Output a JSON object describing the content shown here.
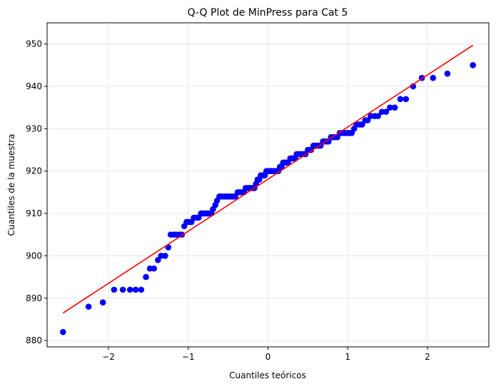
{
  "chart_data": {
    "type": "scatter",
    "title": "Q-Q Plot de MinPress para Cat 5",
    "xlabel": "Cuantiles teóricos",
    "ylabel": "Cuantiles de la muestra",
    "xlim": [
      -2.77,
      2.77
    ],
    "ylim": [
      878.5,
      955
    ],
    "xticks": [
      -2,
      -1,
      0,
      1,
      2
    ],
    "yticks": [
      880,
      890,
      900,
      910,
      920,
      930,
      940,
      950
    ],
    "grid": true,
    "colors": {
      "points": "#0000ff",
      "line": "#ff0000"
    },
    "series": [
      {
        "type": "scatter",
        "points": [
          [
            -2.57,
            882
          ],
          [
            -2.25,
            888
          ],
          [
            -2.07,
            889
          ],
          [
            -1.93,
            892
          ],
          [
            -1.82,
            892
          ],
          [
            -1.73,
            892
          ],
          [
            -1.66,
            892
          ],
          [
            -1.59,
            892
          ],
          [
            -1.53,
            895
          ],
          [
            -1.48,
            897
          ],
          [
            -1.43,
            897
          ],
          [
            -1.38,
            899
          ],
          [
            -1.34,
            900
          ],
          [
            -1.29,
            900
          ],
          [
            -1.25,
            902
          ],
          [
            -1.22,
            905
          ],
          [
            -1.18,
            905
          ],
          [
            -1.15,
            905
          ],
          [
            -1.11,
            905
          ],
          [
            -1.08,
            905
          ],
          [
            -1.05,
            907
          ],
          [
            -1.02,
            908
          ],
          [
            -0.99,
            908
          ],
          [
            -0.96,
            908
          ],
          [
            -0.93,
            909
          ],
          [
            -0.9,
            909
          ],
          [
            -0.87,
            909
          ],
          [
            -0.84,
            910
          ],
          [
            -0.82,
            910
          ],
          [
            -0.79,
            910
          ],
          [
            -0.76,
            910
          ],
          [
            -0.74,
            910
          ],
          [
            -0.71,
            910
          ],
          [
            -0.69,
            911
          ],
          [
            -0.66,
            912
          ],
          [
            -0.64,
            913
          ],
          [
            -0.61,
            914
          ],
          [
            -0.59,
            914
          ],
          [
            -0.57,
            914
          ],
          [
            -0.54,
            914
          ],
          [
            -0.52,
            914
          ],
          [
            -0.5,
            914
          ],
          [
            -0.47,
            914
          ],
          [
            -0.45,
            914
          ],
          [
            -0.43,
            914
          ],
          [
            -0.41,
            914
          ],
          [
            -0.38,
            915
          ],
          [
            -0.36,
            915
          ],
          [
            -0.34,
            915
          ],
          [
            -0.32,
            915
          ],
          [
            -0.3,
            915
          ],
          [
            -0.28,
            916
          ],
          [
            -0.25,
            916
          ],
          [
            -0.23,
            916
          ],
          [
            -0.21,
            916
          ],
          [
            -0.19,
            916
          ],
          [
            -0.17,
            916
          ],
          [
            -0.15,
            917
          ],
          [
            -0.13,
            918
          ],
          [
            -0.11,
            918
          ],
          [
            -0.09,
            919
          ],
          [
            -0.06,
            919
          ],
          [
            -0.04,
            919
          ],
          [
            -0.02,
            920
          ],
          [
            0.0,
            920
          ],
          [
            0.02,
            920
          ],
          [
            0.04,
            920
          ],
          [
            0.06,
            920
          ],
          [
            0.09,
            920
          ],
          [
            0.11,
            920
          ],
          [
            0.13,
            920
          ],
          [
            0.15,
            921
          ],
          [
            0.17,
            921
          ],
          [
            0.19,
            922
          ],
          [
            0.21,
            922
          ],
          [
            0.23,
            922
          ],
          [
            0.25,
            922
          ],
          [
            0.28,
            923
          ],
          [
            0.3,
            923
          ],
          [
            0.32,
            923
          ],
          [
            0.34,
            923
          ],
          [
            0.36,
            924
          ],
          [
            0.38,
            924
          ],
          [
            0.41,
            924
          ],
          [
            0.43,
            924
          ],
          [
            0.45,
            924
          ],
          [
            0.47,
            924
          ],
          [
            0.5,
            925
          ],
          [
            0.52,
            925
          ],
          [
            0.54,
            925
          ],
          [
            0.57,
            926
          ],
          [
            0.59,
            926
          ],
          [
            0.61,
            926
          ],
          [
            0.64,
            926
          ],
          [
            0.66,
            926
          ],
          [
            0.69,
            927
          ],
          [
            0.71,
            927
          ],
          [
            0.74,
            927
          ],
          [
            0.76,
            927
          ],
          [
            0.79,
            928
          ],
          [
            0.82,
            928
          ],
          [
            0.84,
            928
          ],
          [
            0.87,
            928
          ],
          [
            0.9,
            929
          ],
          [
            0.93,
            929
          ],
          [
            0.96,
            929
          ],
          [
            0.99,
            929
          ],
          [
            1.02,
            929
          ],
          [
            1.05,
            929
          ],
          [
            1.08,
            930
          ],
          [
            1.11,
            931
          ],
          [
            1.15,
            931
          ],
          [
            1.18,
            931
          ],
          [
            1.22,
            932
          ],
          [
            1.25,
            932
          ],
          [
            1.29,
            933
          ],
          [
            1.34,
            933
          ],
          [
            1.38,
            933
          ],
          [
            1.43,
            934
          ],
          [
            1.48,
            934
          ],
          [
            1.53,
            935
          ],
          [
            1.59,
            935
          ],
          [
            1.66,
            937
          ],
          [
            1.73,
            937
          ],
          [
            1.82,
            940
          ],
          [
            1.93,
            942
          ],
          [
            2.07,
            942
          ],
          [
            2.25,
            943
          ],
          [
            2.57,
            945
          ]
        ]
      },
      {
        "type": "line",
        "points": [
          [
            -2.57,
            886.5
          ],
          [
            2.57,
            949.7
          ]
        ]
      }
    ]
  }
}
